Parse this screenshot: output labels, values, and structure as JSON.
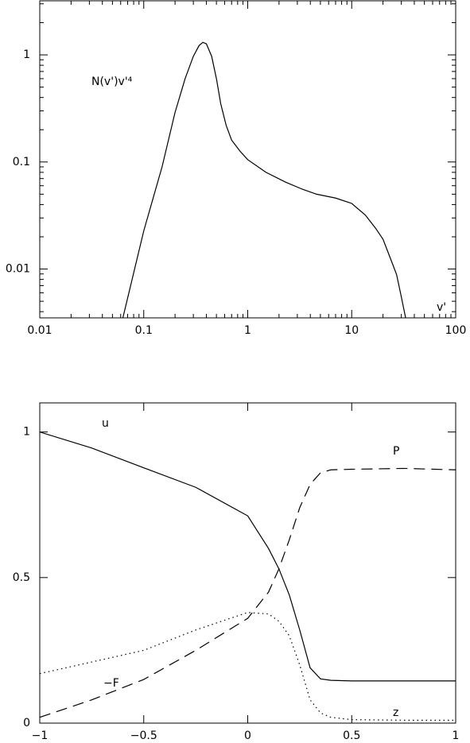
{
  "chart_data": [
    {
      "type": "line",
      "xlabel": "v'",
      "ylabel": "N(v')v'⁴",
      "xscale": "log",
      "yscale": "log",
      "xlim": [
        0.01,
        100
      ],
      "ylim": [
        0.0035,
        3.2
      ],
      "xticks": [
        0.01,
        0.1,
        1,
        10,
        100
      ],
      "yticks": [
        0.01,
        0.1,
        1
      ],
      "x": [
        0.063,
        0.1,
        0.15,
        0.2,
        0.25,
        0.3,
        0.34,
        0.37,
        0.4,
        0.45,
        0.5,
        0.55,
        0.62,
        0.7,
        0.85,
        1,
        1.5,
        2.3,
        3.3,
        4.6,
        7,
        10,
        13.5,
        17,
        20,
        24,
        27,
        30,
        33
      ],
      "series": [
        {
          "color": "#000000",
          "dash": "solid",
          "values": [
            0.0035,
            0.0227,
            0.09,
            0.29,
            0.6,
            0.97,
            1.22,
            1.31,
            1.27,
            0.97,
            0.6,
            0.35,
            0.22,
            0.16,
            0.125,
            0.105,
            0.08,
            0.065,
            0.056,
            0.05,
            0.046,
            0.041,
            0.032,
            0.024,
            0.019,
            0.012,
            0.0089,
            0.0055,
            0.0035
          ]
        }
      ]
    },
    {
      "type": "line",
      "annotations": [
        "z"
      ],
      "xlim": [
        -1,
        1
      ],
      "ylim": [
        0,
        1.1
      ],
      "xticks": [
        {
          "value": -1,
          "label": "−1"
        },
        {
          "value": -0.5,
          "label": "−0.5"
        },
        0,
        0.5,
        1
      ],
      "yticks": [
        0,
        0.5,
        1
      ],
      "x": [
        -1,
        -0.75,
        -0.5,
        -0.25,
        0,
        0.1,
        0.15,
        0.2,
        0.25,
        0.3,
        0.35,
        0.4,
        0.5,
        0.75,
        1
      ],
      "series": [
        {
          "name": "u",
          "color": "#000000",
          "dash": "solid",
          "values": [
            1.0,
            0.945,
            0.877,
            0.81,
            0.712,
            0.6,
            0.53,
            0.44,
            0.32,
            0.19,
            0.152,
            0.147,
            0.145,
            0.145,
            0.145
          ]
        },
        {
          "name": "P",
          "color": "#000000",
          "dash": "dashed",
          "values": [
            0.02,
            0.08,
            0.15,
            0.25,
            0.36,
            0.45,
            0.53,
            0.63,
            0.74,
            0.82,
            0.86,
            0.87,
            0.872,
            0.875,
            0.87
          ]
        },
        {
          "name": "−F",
          "color": "#000000",
          "dash": "dotted",
          "values": [
            0.17,
            0.21,
            0.25,
            0.32,
            0.38,
            0.375,
            0.35,
            0.3,
            0.2,
            0.08,
            0.035,
            0.02,
            0.012,
            0.01,
            0.01
          ]
        }
      ]
    }
  ]
}
